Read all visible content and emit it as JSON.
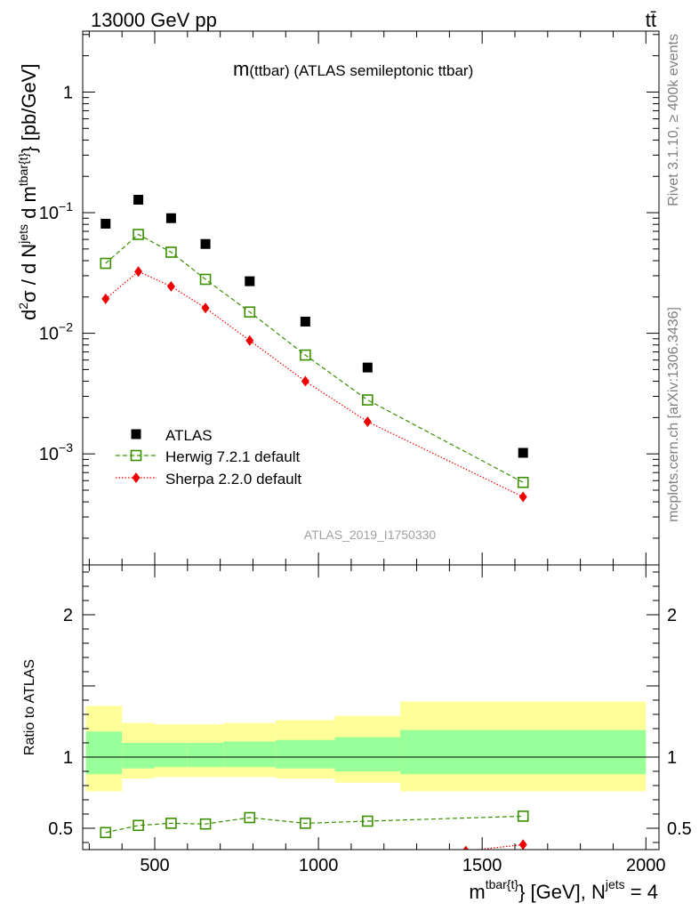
{
  "header": {
    "left": "13000 GeV pp",
    "right": "tt̄"
  },
  "side_labels": {
    "rivet": "Rivet 3.1.10, ≥ 400k events",
    "mcplots": "mcplots.cern.ch [arXiv:1306.3436]"
  },
  "chart_data": [
    {
      "type": "scatter",
      "title": "m(ttbar) (ATLAS semileptonic ttbar)",
      "title_main": "m",
      "title_rest": "(ttbar) (ATLAS semileptonic ttbar)",
      "watermark": "ATLAS_2019_I1750330",
      "ylabel": "d²σ / d N^jets d m^tbar{t} [pb/GeV]",
      "ylabel_parts": {
        "a": "d",
        "sup1": "2",
        "b": "σ  /  d N",
        "sup2": "jets",
        "c": " d m",
        "sup3": "tbar{t}",
        "d": "} [pb/GeV]"
      },
      "y_scale": "log",
      "xlim": [
        280,
        2040
      ],
      "ylim": [
        0.00012,
        3.2
      ],
      "y_ticks": [
        {
          "value": 1,
          "label": "1"
        },
        {
          "value": 0.1,
          "label": "10",
          "exp": "−1"
        },
        {
          "value": 0.01,
          "label": "10",
          "exp": "−2"
        },
        {
          "value": 0.001,
          "label": "10",
          "exp": "−3"
        }
      ],
      "legend_position": "bottom-left",
      "series": [
        {
          "name": "ATLAS",
          "marker": "square-filled",
          "color": "#000000",
          "x": [
            350,
            450,
            550,
            655,
            790,
            960,
            1150,
            1625
          ],
          "y": [
            0.081,
            0.128,
            0.09,
            0.055,
            0.027,
            0.0125,
            0.0052,
            0.00102
          ]
        },
        {
          "name": "Herwig 7.2.1 default",
          "marker": "square-open",
          "line": "dashed",
          "color": "#3a8f00",
          "x": [
            350,
            450,
            550,
            655,
            790,
            960,
            1150,
            1625
          ],
          "y": [
            0.038,
            0.066,
            0.047,
            0.028,
            0.015,
            0.0066,
            0.0028,
            0.00058
          ]
        },
        {
          "name": "Sherpa 2.2.0 default",
          "marker": "diamond-filled",
          "line": "dotted",
          "color": "#ee0000",
          "x": [
            350,
            450,
            550,
            655,
            790,
            960,
            1150,
            1625
          ],
          "y": [
            0.0193,
            0.0325,
            0.0245,
            0.0162,
            0.0087,
            0.004,
            0.00185,
            0.00044
          ]
        }
      ]
    },
    {
      "type": "scatter",
      "ylabel": "Ratio to ATLAS",
      "xlabel": "m^tbar{t}} [GeV], N^jets = 4",
      "xlabel_parts": {
        "a": "m",
        "sup1": "tbar{t}",
        "b": "} [GeV], N",
        "sup2": "jets",
        "c": " = 4"
      },
      "xlim": [
        280,
        2040
      ],
      "ylim": [
        0.35,
        2.35
      ],
      "x_ticks": [
        500,
        1000,
        1500,
        2000
      ],
      "y_ticks": [
        0.5,
        1,
        2
      ],
      "y_tick_labels": [
        "0.5",
        "1",
        "2"
      ],
      "bands": [
        {
          "x0": 290,
          "x1": 400,
          "inner": [
            0.88,
            1.18
          ],
          "outer": [
            0.76,
            1.36
          ]
        },
        {
          "x0": 400,
          "x1": 500,
          "inner": [
            0.92,
            1.1
          ],
          "outer": [
            0.85,
            1.24
          ]
        },
        {
          "x0": 500,
          "x1": 600,
          "inner": [
            0.93,
            1.1
          ],
          "outer": [
            0.86,
            1.23
          ]
        },
        {
          "x0": 600,
          "x1": 710,
          "inner": [
            0.93,
            1.1
          ],
          "outer": [
            0.86,
            1.23
          ]
        },
        {
          "x0": 710,
          "x1": 870,
          "inner": [
            0.93,
            1.11
          ],
          "outer": [
            0.86,
            1.24
          ]
        },
        {
          "x0": 870,
          "x1": 1050,
          "inner": [
            0.92,
            1.12
          ],
          "outer": [
            0.85,
            1.26
          ]
        },
        {
          "x0": 1050,
          "x1": 1250,
          "inner": [
            0.9,
            1.14
          ],
          "outer": [
            0.82,
            1.29
          ]
        },
        {
          "x0": 1250,
          "x1": 2000,
          "inner": [
            0.88,
            1.19
          ],
          "outer": [
            0.76,
            1.39
          ]
        }
      ],
      "band_colors": {
        "inner": "#99ff99",
        "outer": "#ffff99"
      },
      "series": [
        {
          "name": "Herwig 7.2.1 default",
          "marker": "square-open",
          "line": "dashed",
          "color": "#3a8f00",
          "x": [
            350,
            450,
            550,
            655,
            790,
            960,
            1150,
            1625
          ],
          "y": [
            0.47,
            0.52,
            0.535,
            0.53,
            0.575,
            0.535,
            0.55,
            0.585
          ]
        },
        {
          "name": "Sherpa 2.2.0 default",
          "marker": "diamond-filled",
          "line": "dotted",
          "color": "#ee0000",
          "x": [
            1450,
            1625
          ],
          "y": [
            0.34,
            0.385
          ]
        }
      ]
    }
  ]
}
